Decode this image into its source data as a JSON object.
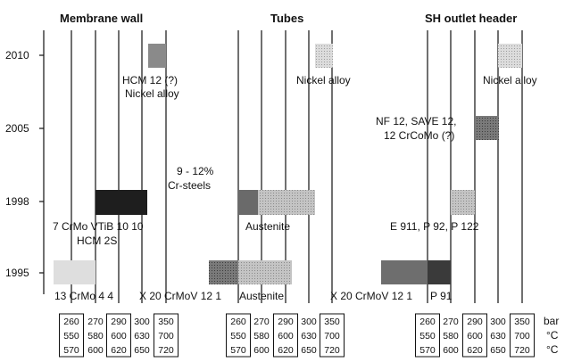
{
  "sections": [
    {
      "title": "Membrane wall"
    },
    {
      "title": "Tubes"
    },
    {
      "title": "SH outlet header"
    }
  ],
  "years": [
    "2010",
    "2005",
    "1998",
    "1995"
  ],
  "labels": {
    "mw_2010": [
      "HCM 12 (?)",
      "Nickel alloy"
    ],
    "mw_crsteels": [
      "9 - 12%",
      "Cr-steels"
    ],
    "mw_1998": [
      "7 CrMo VTiB 10 10",
      "HCM 2S"
    ],
    "mw_1995a": "13 CrMo 4 4",
    "mw_1995b": "X 20 CrMoV 12 1",
    "tb_2010": "Nickel alloy",
    "tb_1998": "Austenite",
    "tb_1995": "Austenite",
    "sh_2010": "Nickel alloy",
    "sh_2005": [
      "NF 12, SAVE 12,",
      "12 CrCoMo (?)"
    ],
    "sh_1998": "E 911, P 92, P 122",
    "sh_1995": "X 20 CrMoV 12 1",
    "sh_1995b": "P 91"
  },
  "table": {
    "rows": [
      [
        "260",
        "270",
        "290",
        "300",
        "350"
      ],
      [
        "550",
        "580",
        "600",
        "630",
        "700"
      ],
      [
        "570",
        "600",
        "620",
        "650",
        "720"
      ]
    ],
    "units": [
      "bar",
      "°C",
      "°C"
    ]
  },
  "colors": {
    "black": "#1e1e1e",
    "dark": "#5c5c5c",
    "mid": "#808080",
    "light": "#b0b0b0",
    "pale": "#d0d0d0",
    "vpale": "#dedede"
  }
}
